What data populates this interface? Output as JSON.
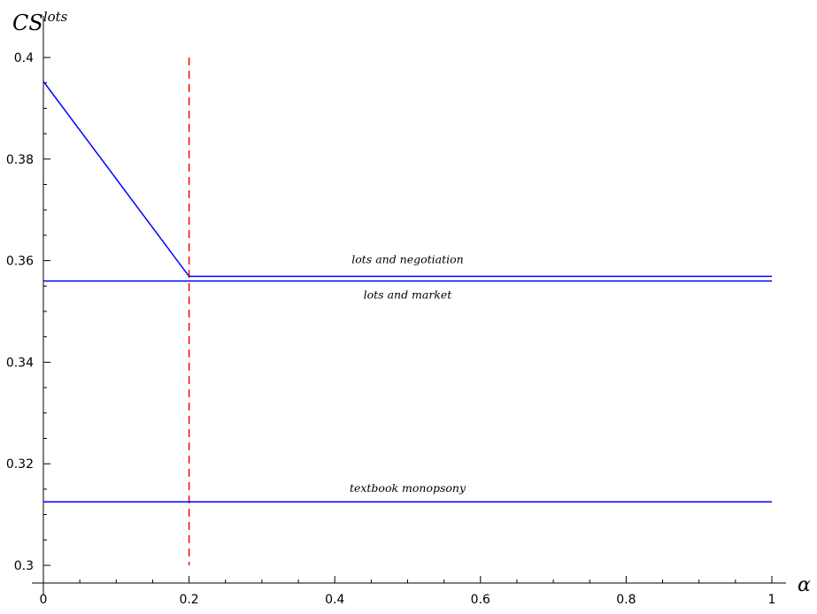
{
  "chart_data": {
    "type": "line",
    "title": "",
    "xlabel": "α",
    "ylabel_base": "CS",
    "ylabel_sup": "lots",
    "xlim": [
      0,
      1
    ],
    "ylim": [
      0.3,
      0.4
    ],
    "x_ticks": [
      0,
      0.2,
      0.4,
      0.6,
      0.8,
      1
    ],
    "x_tick_labels": [
      "0",
      "0.2",
      "0.4",
      "0.6",
      "0.8",
      "1"
    ],
    "y_ticks": [
      0.3,
      0.32,
      0.34,
      0.36,
      0.38,
      0.4
    ],
    "y_tick_labels": [
      "0.3",
      "0.32",
      "0.34",
      "0.36",
      "0.38",
      "0.4"
    ],
    "grid": false,
    "series": [
      {
        "label": "lots and negotiation",
        "color": "#0000ff",
        "x": [
          0,
          0.2,
          1
        ],
        "y": [
          0.3953,
          0.3569,
          0.3569
        ]
      },
      {
        "label": "lots and market",
        "color": "#0000ff",
        "x": [
          0,
          1
        ],
        "y": [
          0.356,
          0.356
        ]
      },
      {
        "label": "textbook monopsony",
        "color": "#0000ff",
        "x": [
          0,
          1
        ],
        "y": [
          0.3125,
          0.3125
        ]
      }
    ],
    "vertical_line": {
      "x": 0.2,
      "y_from": 0.3,
      "y_to": 0.4,
      "color": "#ff0000",
      "style": "dashed"
    },
    "annotations": [
      {
        "text": "lots and negotiation",
        "x": 0.5,
        "y": 0.3595
      },
      {
        "text": "lots and market",
        "x": 0.5,
        "y": 0.3525
      },
      {
        "text": "textbook monopsony",
        "x": 0.5,
        "y": 0.3145
      }
    ]
  }
}
